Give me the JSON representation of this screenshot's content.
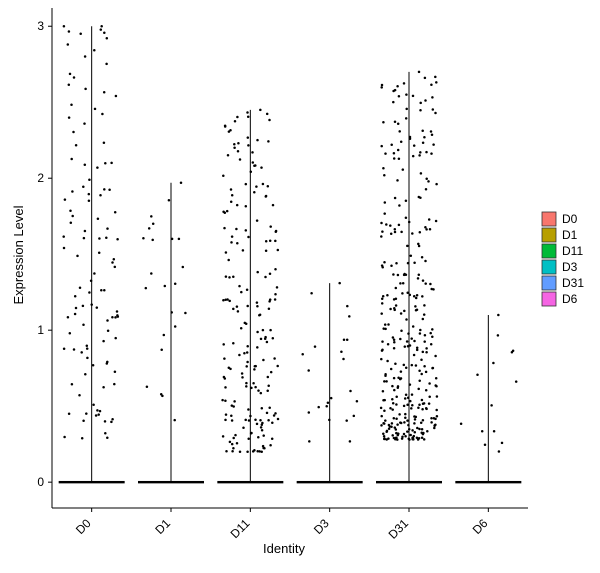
{
  "chart_data": {
    "type": "violin",
    "title": "",
    "xlabel": "Identity",
    "ylabel": "Expression Level",
    "categories": [
      "D0",
      "D1",
      "D11",
      "D3",
      "D31",
      "D6"
    ],
    "ylim": [
      -0.17,
      3.12
    ],
    "yticks": [
      0,
      1,
      2,
      3
    ],
    "ytick_labels": [
      "0",
      "1",
      "2",
      "3"
    ],
    "grid": false,
    "legend": {
      "placement": "right",
      "entries": [
        {
          "label": "D0",
          "color": "#F8766D"
        },
        {
          "label": "D1",
          "color": "#B79F00"
        },
        {
          "label": "D11",
          "color": "#00BA38"
        },
        {
          "label": "D3",
          "color": "#00BFC4"
        },
        {
          "label": "D31",
          "color": "#619CFF"
        },
        {
          "label": "D6",
          "color": "#F564E3"
        }
      ]
    },
    "series": [
      {
        "name": "D0",
        "max": 3.0,
        "nonzero_count": 110,
        "range": [
          0.28,
          3.0
        ]
      },
      {
        "name": "D1",
        "max": 1.97,
        "nonzero_count": 22,
        "range": [
          0.22,
          1.97
        ]
      },
      {
        "name": "D11",
        "max": 2.45,
        "nonzero_count": 190,
        "range": [
          0.2,
          2.45
        ]
      },
      {
        "name": "D3",
        "max": 1.31,
        "nonzero_count": 22,
        "range": [
          0.22,
          1.31
        ]
      },
      {
        "name": "D31",
        "max": 2.7,
        "nonzero_count": 330,
        "range": [
          0.28,
          2.7
        ]
      },
      {
        "name": "D6",
        "max": 1.1,
        "nonzero_count": 13,
        "range": [
          0.18,
          1.1
        ]
      }
    ]
  }
}
